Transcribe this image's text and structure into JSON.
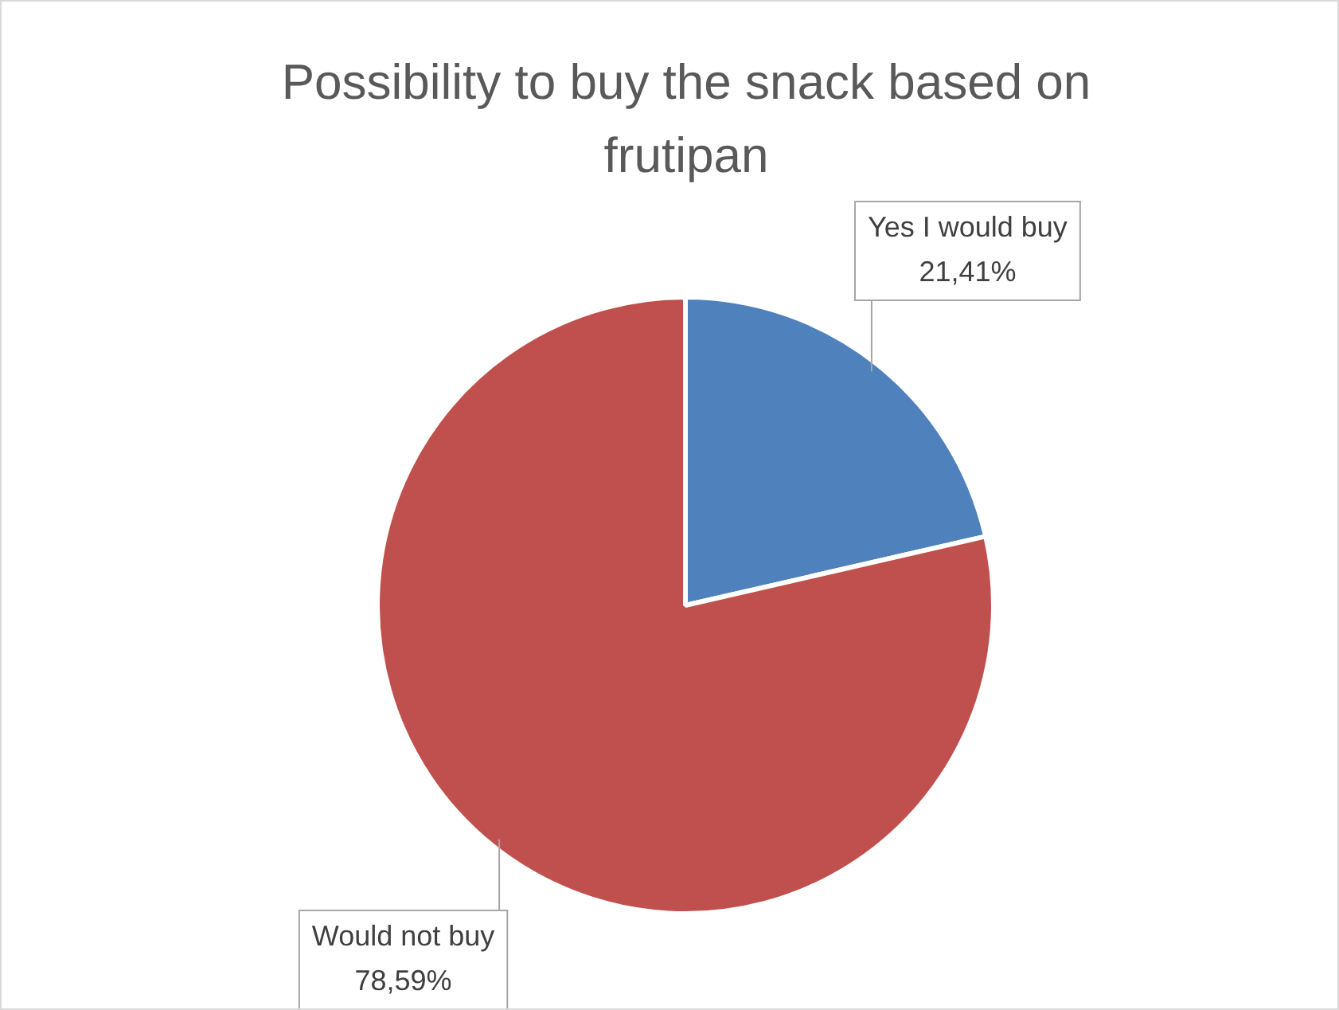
{
  "chart_data": {
    "type": "pie",
    "title": "Possibility to buy the snack based on frutipan",
    "categories": [
      "Yes I would buy",
      "Would not buy"
    ],
    "values": [
      21.41,
      78.59
    ],
    "colors": [
      "#4f81bd",
      "#c0504d"
    ],
    "value_labels": [
      "21,41%",
      "78,59%"
    ],
    "legend": false
  }
}
